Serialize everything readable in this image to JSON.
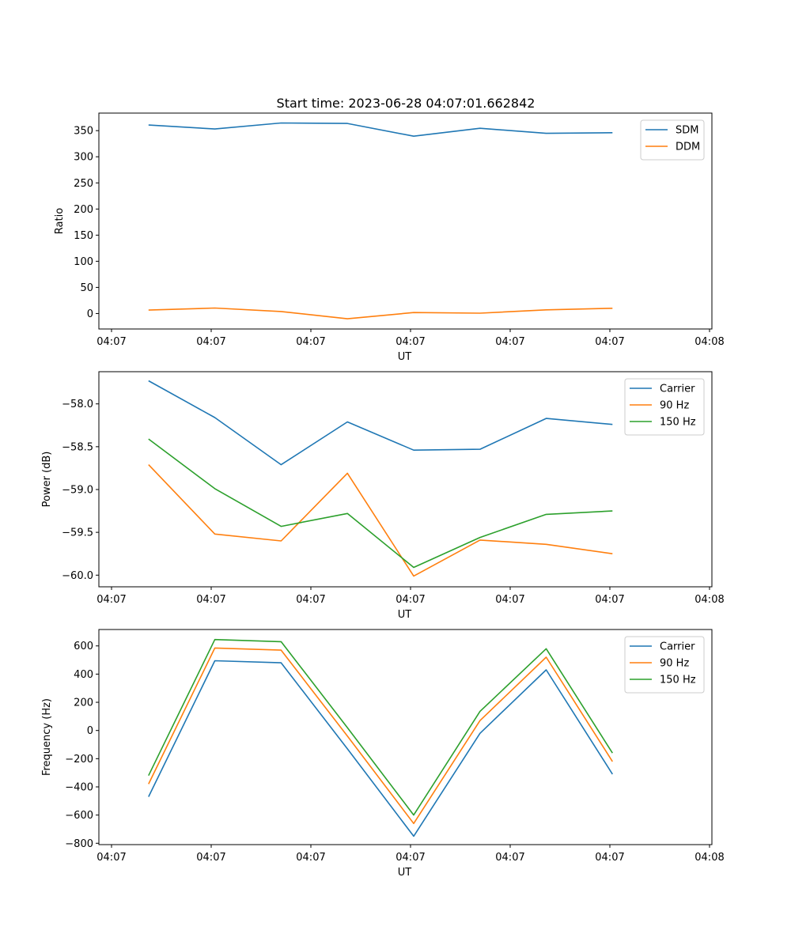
{
  "figure": {
    "title": "Start time: 2023-06-28 04:07:01.662842"
  },
  "chart_data": [
    {
      "type": "line",
      "xlabel": "UT",
      "ylabel": "Ratio",
      "x_tick_labels": [
        "04:07",
        "04:07",
        "04:07",
        "04:07",
        "04:07",
        "04:07",
        "04:08"
      ],
      "y_ticks": [
        0,
        50,
        100,
        150,
        200,
        250,
        300,
        350
      ],
      "ylim": [
        -29.6,
        383.6
      ],
      "xlim": [
        -0.25,
        9.0
      ],
      "legend_position": "upper right",
      "x": [
        0.5,
        1.5,
        2.5,
        3.5,
        4.5,
        5.5,
        6.5,
        7.5
      ],
      "series": [
        {
          "name": "SDM",
          "color": "#1f77b4",
          "values": [
            360.8,
            353.2,
            364.7,
            363.8,
            339.4,
            354.6,
            344.9,
            346.1
          ]
        },
        {
          "name": "DDM",
          "color": "#ff7f0e",
          "values": [
            6.5,
            10.5,
            3.8,
            -10.1,
            1.9,
            0.6,
            7.0,
            10.1
          ]
        }
      ]
    },
    {
      "type": "line",
      "xlabel": "UT",
      "ylabel": "Power (dB)",
      "x_tick_labels": [
        "04:07",
        "04:07",
        "04:07",
        "04:07",
        "04:07",
        "04:07",
        "04:08"
      ],
      "y_ticks": [
        -60.0,
        -59.5,
        -59.0,
        -58.5,
        -58.0
      ],
      "y_tick_labels": [
        "−60.0",
        "−59.5",
        "−59.0",
        "−58.5",
        "−58.0"
      ],
      "ylim": [
        -60.136,
        -57.624
      ],
      "xlim": [
        -0.25,
        9.0
      ],
      "legend_position": "upper right",
      "x": [
        0.5,
        1.5,
        2.5,
        3.5,
        4.5,
        5.5,
        6.5,
        7.5
      ],
      "series": [
        {
          "name": "Carrier",
          "color": "#1f77b4",
          "values": [
            -57.73,
            -58.16,
            -58.71,
            -58.21,
            -58.54,
            -58.53,
            -58.17,
            -58.24
          ]
        },
        {
          "name": "90 Hz",
          "color": "#ff7f0e",
          "values": [
            -58.71,
            -59.52,
            -59.6,
            -58.81,
            -60.01,
            -59.59,
            -59.64,
            -59.75
          ]
        },
        {
          "name": "150 Hz",
          "color": "#2ca02c",
          "values": [
            -58.41,
            -58.99,
            -59.43,
            -59.28,
            -59.91,
            -59.56,
            -59.29,
            -59.25
          ]
        }
      ]
    },
    {
      "type": "line",
      "xlabel": "UT",
      "ylabel": "Frequency (Hz)",
      "x_tick_labels": [
        "04:07",
        "04:07",
        "04:07",
        "04:07",
        "04:07",
        "04:07",
        "04:08"
      ],
      "y_ticks": [
        -800,
        -600,
        -400,
        -200,
        0,
        200,
        400,
        600
      ],
      "y_tick_labels": [
        "−800",
        "−600",
        "−400",
        "−200",
        "0",
        "200",
        "400",
        "600"
      ],
      "ylim": [
        -809.6,
        716.4
      ],
      "xlim": [
        -0.25,
        9.0
      ],
      "legend_position": "upper right",
      "x": [
        0.5,
        1.5,
        2.5,
        3.5,
        4.5,
        5.5,
        6.5,
        7.5
      ],
      "series": [
        {
          "name": "Carrier",
          "color": "#1f77b4",
          "values": [
            -470,
            495,
            480,
            -130,
            -750,
            -20,
            430,
            -310
          ]
        },
        {
          "name": "90 Hz",
          "color": "#ff7f0e",
          "values": [
            -380,
            585,
            570,
            -40,
            -660,
            70,
            520,
            -220
          ]
        },
        {
          "name": "150 Hz",
          "color": "#2ca02c",
          "values": [
            -320,
            645,
            630,
            20,
            -600,
            135,
            580,
            -160
          ]
        }
      ]
    }
  ]
}
